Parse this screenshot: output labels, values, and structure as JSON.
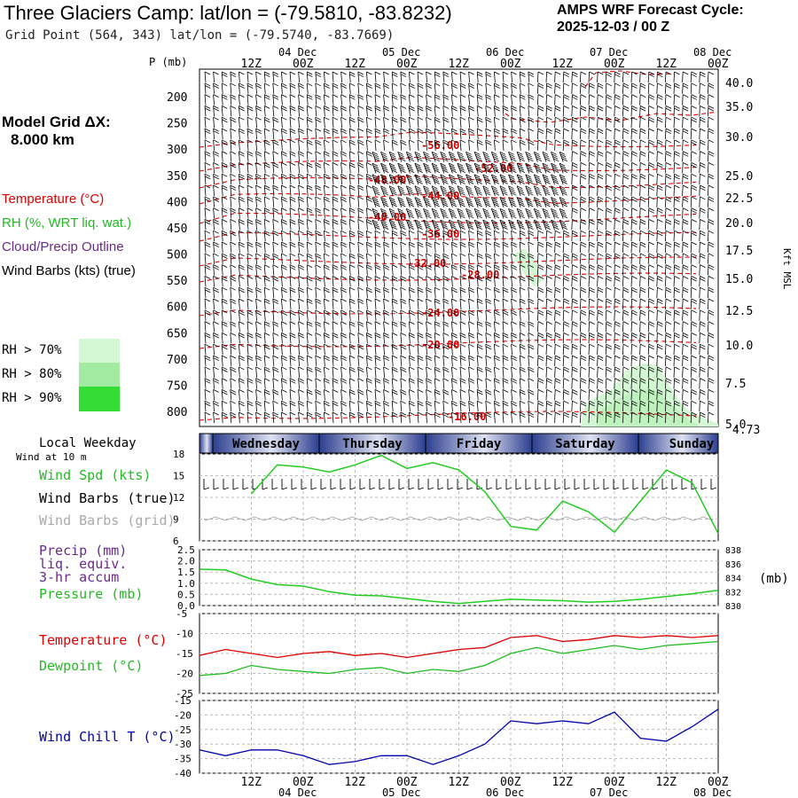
{
  "header": {
    "title": "Three Glaciers Camp:  lat/lon = (-79.5810, -83.8232)",
    "grid_point": "Grid Point (564, 343) lat/lon = (-79.5740, -83.7669)",
    "cycle_title": "AMPS WRF Forecast Cycle:",
    "cycle_value": "2025-12-03 / 00  Z"
  },
  "sidebar": {
    "model_grid_label": "Model Grid ΔX:",
    "model_grid_value": "8.000 km",
    "temperature_legend": "Temperature (°C)",
    "rh_legend": "RH (%, WRT liq. wat.)",
    "cloud_legend": "Cloud/Precip Outline",
    "wind_legend": "Wind Barbs (kts) (true)",
    "rh_levels": [
      {
        "label": "RH > 70%",
        "color": "#d4f7d4"
      },
      {
        "label": "RH > 80%",
        "color": "#a3eba3"
      },
      {
        "label": "RH > 90%",
        "color": "#33dd33"
      }
    ]
  },
  "colors": {
    "temperature": "#dd0000",
    "rh": "#22bb22",
    "cloud": "#6a2a8a",
    "wind_grid": "#aaaaaa",
    "chill": "#0000aa",
    "pressure": "#22bb22"
  },
  "time_axis": {
    "time_labels": [
      "12Z",
      "00Z",
      "12Z",
      "00Z",
      "12Z",
      "00Z",
      "12Z",
      "00Z",
      "12Z",
      "00Z"
    ],
    "date_labels": [
      "04 Dec",
      "05 Dec",
      "06 Dec",
      "07 Dec",
      "08 Dec"
    ]
  },
  "weekday_bar": {
    "label": "Local Weekday",
    "days": [
      "Wednesday",
      "Thursday",
      "Friday",
      "Saturday",
      "Sunday"
    ]
  },
  "chart_data": [
    {
      "type": "contour",
      "name": "cross-section",
      "y_axis_label": "P (mb)",
      "y_ticks": [
        "200",
        "250",
        "300",
        "350",
        "400",
        "450",
        "500",
        "550",
        "600",
        "650",
        "700",
        "750",
        "800"
      ],
      "right_axis_label": "Kft MSL",
      "right_ticks": [
        "40.0",
        "35.0",
        "30.0",
        "25.0",
        "22.5",
        "20.0",
        "17.5",
        "15.0",
        "12.5",
        "10.0",
        "7.5",
        "5.0"
      ],
      "surface_label": "4.73",
      "temperature_contours": [
        {
          "label": "-56.00",
          "value": -56
        },
        {
          "label": "-52.00",
          "value": -52
        },
        {
          "label": "-48.00",
          "value": -48
        },
        {
          "label": "-44.00",
          "value": -44
        },
        {
          "label": "-40.00",
          "value": -40
        },
        {
          "label": "-36.00",
          "value": -36
        },
        {
          "label": "-32.00",
          "value": -32
        },
        {
          "label": "-28.00",
          "value": -28
        },
        {
          "label": "-24.00",
          "value": -24
        },
        {
          "label": "-20.00",
          "value": -20
        },
        {
          "label": "-16.00",
          "value": -16
        }
      ]
    },
    {
      "type": "line",
      "name": "wind",
      "labels": [
        "Wind at 10 m",
        "Wind Spd (kts)",
        "Wind Barbs (true)",
        "Wind Barbs (grid)"
      ],
      "y_ticks": [
        "18",
        "15",
        "12",
        "9",
        "6"
      ],
      "ylim": [
        6,
        18
      ],
      "x": [
        12,
        18,
        24,
        30,
        36,
        42,
        48,
        54,
        60,
        66,
        72,
        78,
        84,
        90,
        96,
        102,
        108,
        114,
        120
      ],
      "values": [
        12.5,
        16.5,
        16.2,
        15.5,
        16.5,
        17.8,
        16,
        16.8,
        15.8,
        12.8,
        8,
        7.5,
        11.5,
        10,
        7.2,
        11.5,
        15.8,
        14,
        7
      ]
    },
    {
      "type": "line",
      "name": "precip-pressure",
      "labels": [
        "Precip (mm)",
        "liq. equiv.",
        "3-hr accum",
        "Pressure (mb)"
      ],
      "left_ticks": [
        "2.5",
        "2.0",
        "1.5",
        "1.0",
        "0.5",
        "0.0"
      ],
      "right_ticks": [
        "838",
        "836",
        "834",
        "832",
        "830"
      ],
      "right_unit": "(mb)",
      "ylim": [
        830,
        838
      ],
      "precip_values": [
        0,
        0,
        0,
        0,
        0,
        0,
        0,
        0,
        0,
        0,
        0,
        0,
        0,
        0,
        0,
        0,
        0,
        0,
        0,
        0,
        0,
        0,
        0,
        0,
        0,
        0,
        0,
        0,
        0,
        0,
        0,
        0,
        0,
        0,
        0,
        0,
        0,
        0,
        0,
        0,
        0
      ],
      "x": [
        0,
        6,
        12,
        18,
        24,
        30,
        36,
        42,
        48,
        54,
        60,
        66,
        72,
        78,
        84,
        90,
        96,
        102,
        108,
        114,
        120
      ],
      "values": [
        835.2,
        835.1,
        833.8,
        833.0,
        832.8,
        832.0,
        831.5,
        831.4,
        831.0,
        830.6,
        830.3,
        830.6,
        830.9,
        830.8,
        830.7,
        830.5,
        830.6,
        830.9,
        831.3,
        831.7,
        832.2
      ]
    },
    {
      "type": "line",
      "name": "temperature-dewpoint",
      "series": [
        {
          "name": "Temperature (°C)",
          "color": "#dd0000",
          "values": [
            -15.5,
            -14,
            -15,
            -16,
            -15,
            -14.5,
            -15.5,
            -15,
            -16,
            -15,
            -14,
            -13.5,
            -11,
            -10.5,
            -12,
            -11.5,
            -10.5,
            -11,
            -10.5,
            -11,
            -10.5
          ]
        },
        {
          "name": "Dewpoint (°C)",
          "color": "#22bb22",
          "values": [
            -20.5,
            -20,
            -18,
            -19,
            -19.5,
            -20,
            -19,
            -18.5,
            -20,
            -19,
            -19.5,
            -18,
            -15,
            -13.5,
            -15,
            -14,
            -13,
            -14,
            -13,
            -12.5,
            -12
          ]
        }
      ],
      "x": [
        0,
        6,
        12,
        18,
        24,
        30,
        36,
        42,
        48,
        54,
        60,
        66,
        72,
        78,
        84,
        90,
        96,
        102,
        108,
        114,
        120
      ],
      "y_ticks": [
        "-5",
        "-10",
        "-15",
        "-20",
        "-25"
      ],
      "ylim": [
        -25,
        -5
      ]
    },
    {
      "type": "line",
      "name": "wind-chill",
      "series": [
        {
          "name": "Wind Chill T (°C)",
          "color": "#0000aa",
          "values": [
            -32,
            -34,
            -32,
            -32,
            -34,
            -37,
            -36,
            -34,
            -34,
            -37,
            -34,
            -30,
            -22,
            -23,
            -22,
            -23,
            -19,
            -28,
            -29,
            -24,
            -18
          ]
        }
      ],
      "x": [
        0,
        6,
        12,
        18,
        24,
        30,
        36,
        42,
        48,
        54,
        60,
        66,
        72,
        78,
        84,
        90,
        96,
        102,
        108,
        114,
        120
      ],
      "y_ticks": [
        "-15",
        "-20",
        "-25",
        "-30",
        "-35",
        "-40"
      ],
      "ylim": [
        -40,
        -15
      ]
    }
  ]
}
